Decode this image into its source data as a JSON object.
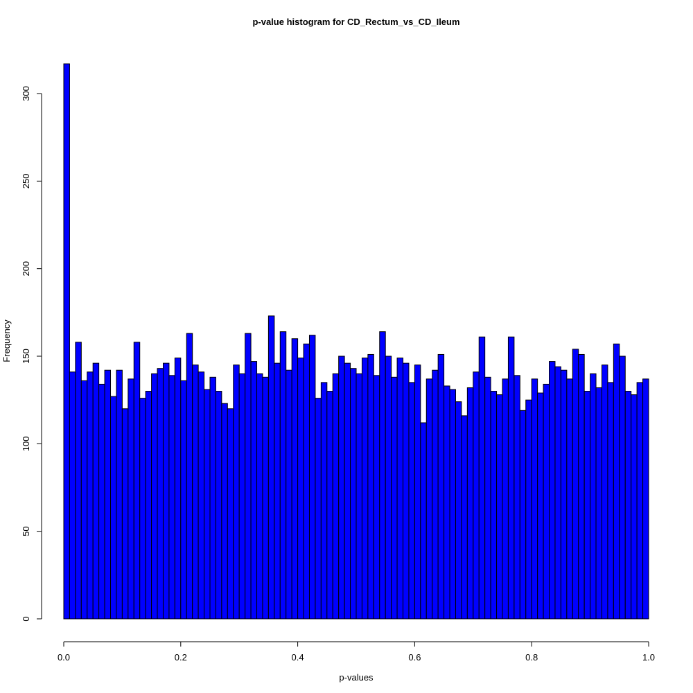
{
  "chart_data": {
    "type": "bar",
    "title": "p-value histogram for CD_Rectum_vs_CD_Ileum",
    "xlabel": "p-values",
    "ylabel": "Frequency",
    "xlim": [
      0,
      1
    ],
    "ylim": [
      0,
      317
    ],
    "bin_width": 0.01,
    "x_ticks": [
      0,
      0.2,
      0.4,
      0.6,
      0.8,
      1
    ],
    "x_tick_labels": [
      "0.0",
      "0.2",
      "0.4",
      "0.6",
      "0.8",
      "1.0"
    ],
    "y_ticks": [
      0,
      50,
      100,
      150,
      200,
      250,
      300
    ],
    "y_tick_labels": [
      "0",
      "50",
      "100",
      "150",
      "200",
      "250",
      "300"
    ],
    "bar_color": "#0000ff",
    "border_color": "#000000",
    "grid": false,
    "values": [
      317,
      141,
      158,
      136,
      141,
      146,
      134,
      142,
      127,
      142,
      120,
      137,
      158,
      126,
      130,
      140,
      143,
      146,
      139,
      149,
      136,
      163,
      145,
      141,
      131,
      138,
      130,
      123,
      120,
      145,
      140,
      163,
      147,
      140,
      138,
      173,
      146,
      164,
      142,
      160,
      149,
      157,
      162,
      126,
      135,
      130,
      140,
      150,
      146,
      143,
      140,
      149,
      151,
      139,
      164,
      150,
      138,
      149,
      146,
      135,
      145,
      112,
      137,
      142,
      151,
      133,
      131,
      124,
      116,
      132,
      141,
      161,
      138,
      130,
      128,
      137,
      161,
      139,
      119,
      125,
      137,
      129,
      134,
      147,
      144,
      142,
      137,
      154,
      151,
      130,
      140,
      132,
      145,
      135,
      157,
      150,
      130,
      128,
      135,
      137
    ]
  }
}
